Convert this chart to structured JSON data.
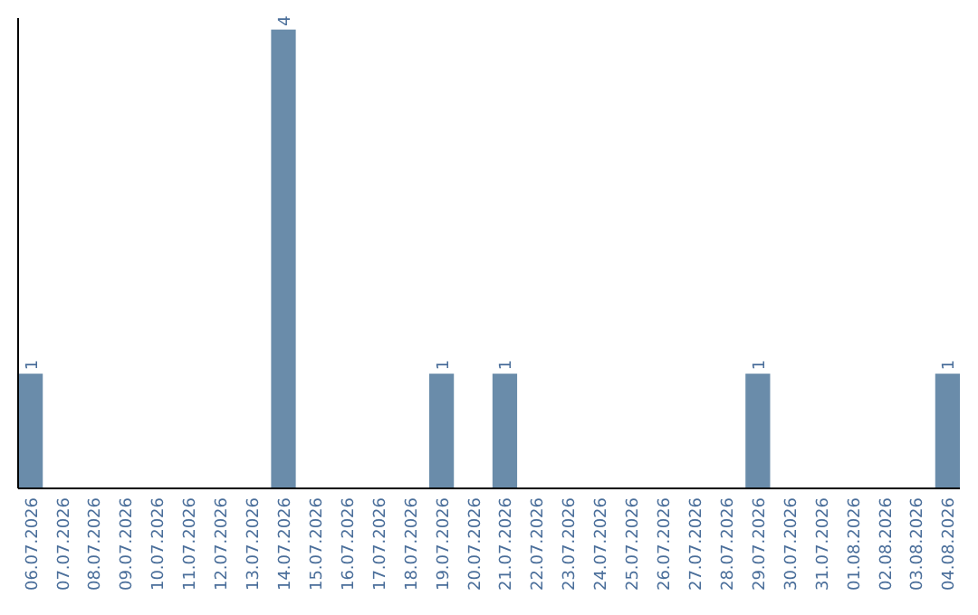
{
  "chart_data": {
    "type": "bar",
    "categories": [
      "06.07.2026",
      "07.07.2026",
      "08.07.2026",
      "09.07.2026",
      "10.07.2026",
      "11.07.2026",
      "12.07.2026",
      "13.07.2026",
      "14.07.2026",
      "15.07.2026",
      "16.07.2026",
      "17.07.2026",
      "18.07.2026",
      "19.07.2026",
      "20.07.2026",
      "21.07.2026",
      "22.07.2026",
      "23.07.2026",
      "24.07.2026",
      "25.07.2026",
      "26.07.2026",
      "27.07.2026",
      "28.07.2026",
      "29.07.2026",
      "30.07.2026",
      "31.07.2026",
      "01.08.2026",
      "02.08.2026",
      "03.08.2026",
      "04.08.2026"
    ],
    "values": [
      1,
      0,
      0,
      0,
      0,
      0,
      0,
      0,
      4,
      0,
      0,
      0,
      0,
      1,
      0,
      1,
      0,
      0,
      0,
      0,
      0,
      0,
      0,
      1,
      0,
      0,
      0,
      0,
      0,
      1
    ],
    "value_labels": [
      "1",
      null,
      null,
      null,
      null,
      null,
      null,
      null,
      "4",
      null,
      null,
      null,
      null,
      "1",
      null,
      "1",
      null,
      null,
      null,
      null,
      null,
      null,
      null,
      "1",
      null,
      null,
      null,
      null,
      null,
      "1"
    ],
    "color": "#6a8caa",
    "ylim": [
      0,
      4.1
    ]
  }
}
